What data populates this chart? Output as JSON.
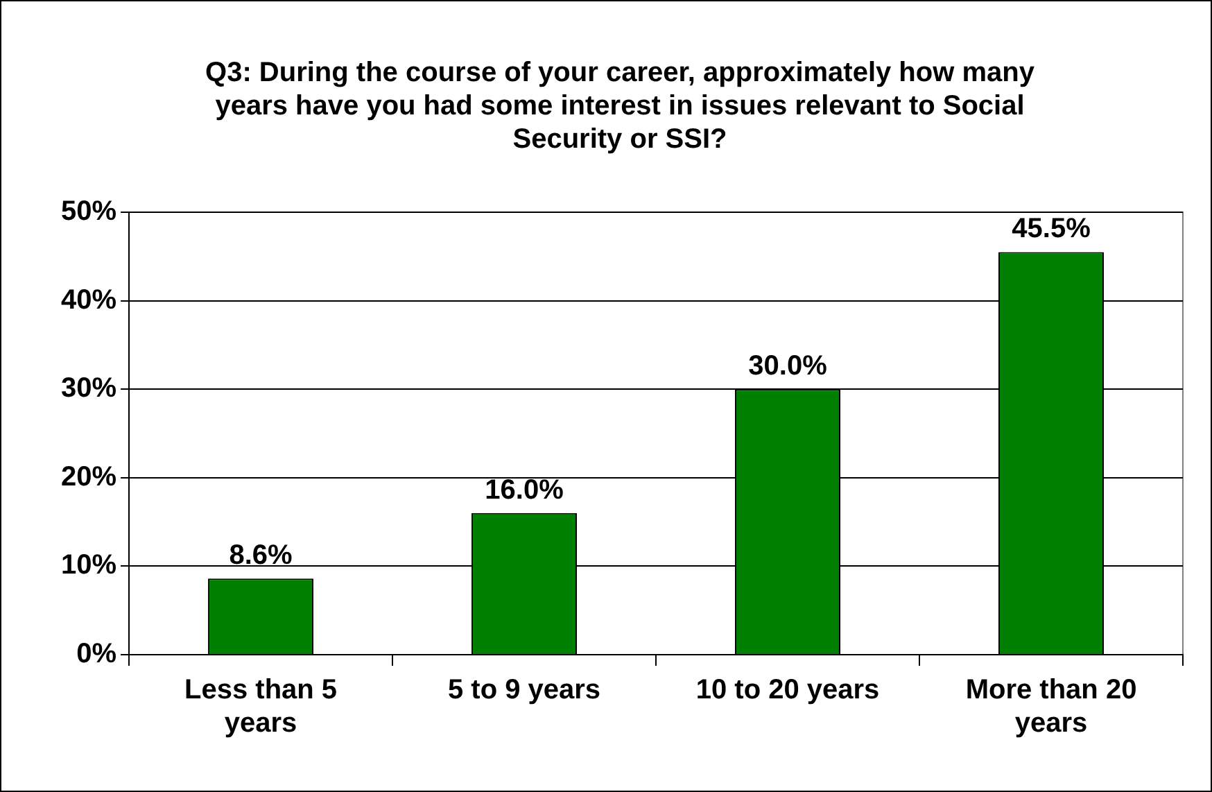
{
  "chart_data": {
    "type": "bar",
    "title": "Q3: During the course of your career, approximately how many years have you had some interest in issues relevant to Social Security or SSI?",
    "categories": [
      "Less than 5 years",
      "5 to 9 years",
      "10 to 20 years",
      "More than 20 years"
    ],
    "values": [
      8.6,
      16.0,
      30.0,
      45.5
    ],
    "value_labels": [
      "8.6%",
      "16.0%",
      "30.0%",
      "45.5%"
    ],
    "color": "#008000",
    "ylim": [
      0,
      50
    ],
    "yticks": [
      {
        "value": 0,
        "label": "0%"
      },
      {
        "value": 10,
        "label": "10%"
      },
      {
        "value": 20,
        "label": "20%"
      },
      {
        "value": 30,
        "label": "30%"
      },
      {
        "value": 40,
        "label": "40%"
      },
      {
        "value": 50,
        "label": "50%"
      }
    ],
    "grid": "y",
    "legend": false
  }
}
